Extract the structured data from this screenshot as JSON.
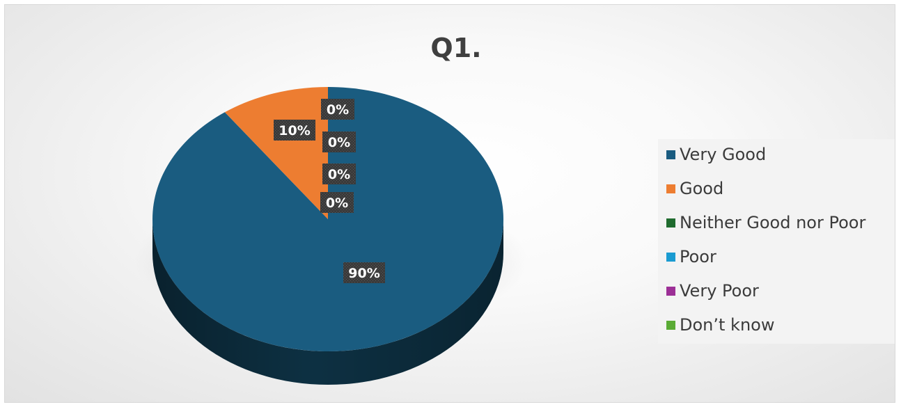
{
  "chart_data": {
    "type": "pie",
    "title": "Q1.",
    "categories": [
      "Very Good",
      "Good",
      "Neither Good nor Poor",
      "Poor",
      "Very Poor",
      "Don’t know"
    ],
    "values": [
      90,
      10,
      0,
      0,
      0,
      0
    ],
    "labels": [
      "90%",
      "10%",
      "0%",
      "0%",
      "0%",
      "0%"
    ],
    "colors": [
      "#1a5c80",
      "#ed7d31",
      "#1f6b2e",
      "#1a9bd1",
      "#9c2f96",
      "#5aab35"
    ],
    "legend_position": "right",
    "style": "3d"
  }
}
